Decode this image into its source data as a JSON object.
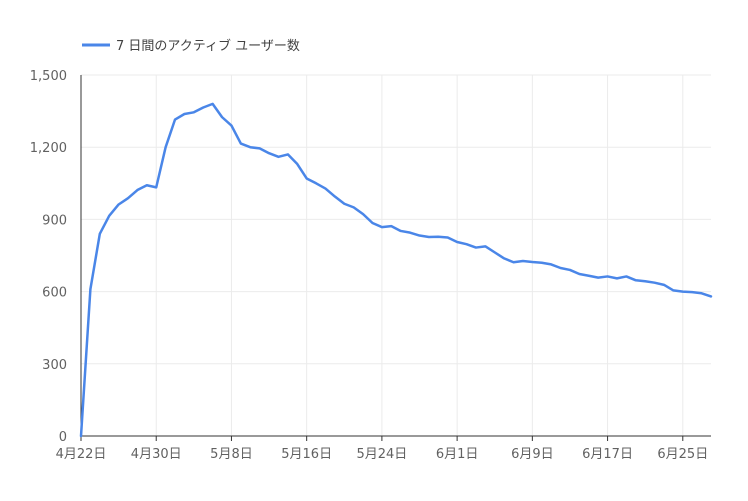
{
  "chart_data": {
    "type": "line",
    "title": "",
    "xlabel": "",
    "ylabel": "",
    "legend": {
      "position": "top-left",
      "entries": [
        "7 日間のアクティブ ユーザー数"
      ]
    },
    "grid": true,
    "ylim": [
      0,
      1500
    ],
    "y_ticks": [
      0,
      300,
      600,
      900,
      1200,
      1500
    ],
    "y_tick_labels": [
      "0",
      "300",
      "600",
      "900",
      "1,200",
      "1,500"
    ],
    "x_tick_labels": [
      "4月22日",
      "4月30日",
      "5月8日",
      "5月16日",
      "5月24日",
      "6月1日",
      "6月9日",
      "6月17日",
      "6月25日"
    ],
    "x_tick_days": [
      0,
      8,
      16,
      24,
      32,
      40,
      48,
      56,
      64
    ],
    "x_range_days": [
      0,
      67
    ],
    "colors": {
      "series": "#4a86e8",
      "grid": "#ebebeb",
      "axis": "#333333"
    },
    "series": [
      {
        "name": "7 日間のアクティブ ユーザー数",
        "values": [
          0,
          610,
          840,
          915,
          962,
          988,
          1022,
          1042,
          1033,
          1200,
          1315,
          1338,
          1345,
          1365,
          1380,
          1325,
          1290,
          1215,
          1200,
          1195,
          1175,
          1160,
          1170,
          1130,
          1070,
          1050,
          1028,
          995,
          965,
          950,
          922,
          885,
          868,
          872,
          852,
          845,
          833,
          827,
          828,
          825,
          806,
          797,
          783,
          788,
          763,
          738,
          722,
          727,
          723,
          720,
          713,
          698,
          690,
          673,
          666,
          658,
          663,
          655,
          663,
          647,
          643,
          637,
          628,
          605,
          600,
          598,
          593,
          580
        ]
      }
    ]
  }
}
